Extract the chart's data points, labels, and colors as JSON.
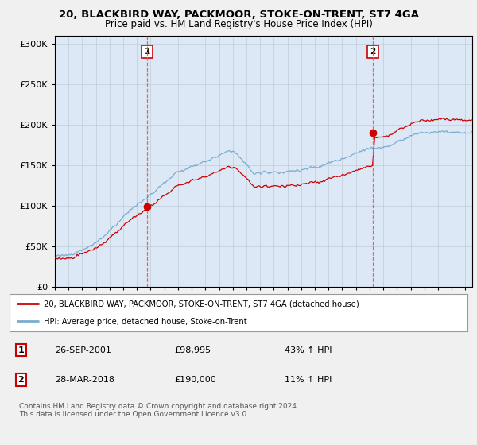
{
  "title": "20, BLACKBIRD WAY, PACKMOOR, STOKE-ON-TRENT, ST7 4GA",
  "subtitle": "Price paid vs. HM Land Registry's House Price Index (HPI)",
  "legend_line1": "20, BLACKBIRD WAY, PACKMOOR, STOKE-ON-TRENT, ST7 4GA (detached house)",
  "legend_line2": "HPI: Average price, detached house, Stoke-on-Trent",
  "annotation1_num": "1",
  "annotation1_date": "26-SEP-2001",
  "annotation1_price": "£98,995",
  "annotation1_hpi": "43% ↑ HPI",
  "annotation2_num": "2",
  "annotation2_date": "28-MAR-2018",
  "annotation2_price": "£190,000",
  "annotation2_hpi": "11% ↑ HPI",
  "footer": "Contains HM Land Registry data © Crown copyright and database right 2024.\nThis data is licensed under the Open Government Licence v3.0.",
  "red_color": "#cc0000",
  "blue_color": "#7aadcf",
  "vline_color": "#ee5555",
  "ylim": [
    0,
    310000
  ],
  "xlim_start": 1995.0,
  "xlim_end": 2025.5,
  "sale1_x": 2001.74,
  "sale1_y": 98995,
  "sale2_x": 2018.24,
  "sale2_y": 190000,
  "background_color": "#f0f0f0",
  "plot_background": "#dce8f5",
  "plot_bg_right": "#e8e8e8"
}
